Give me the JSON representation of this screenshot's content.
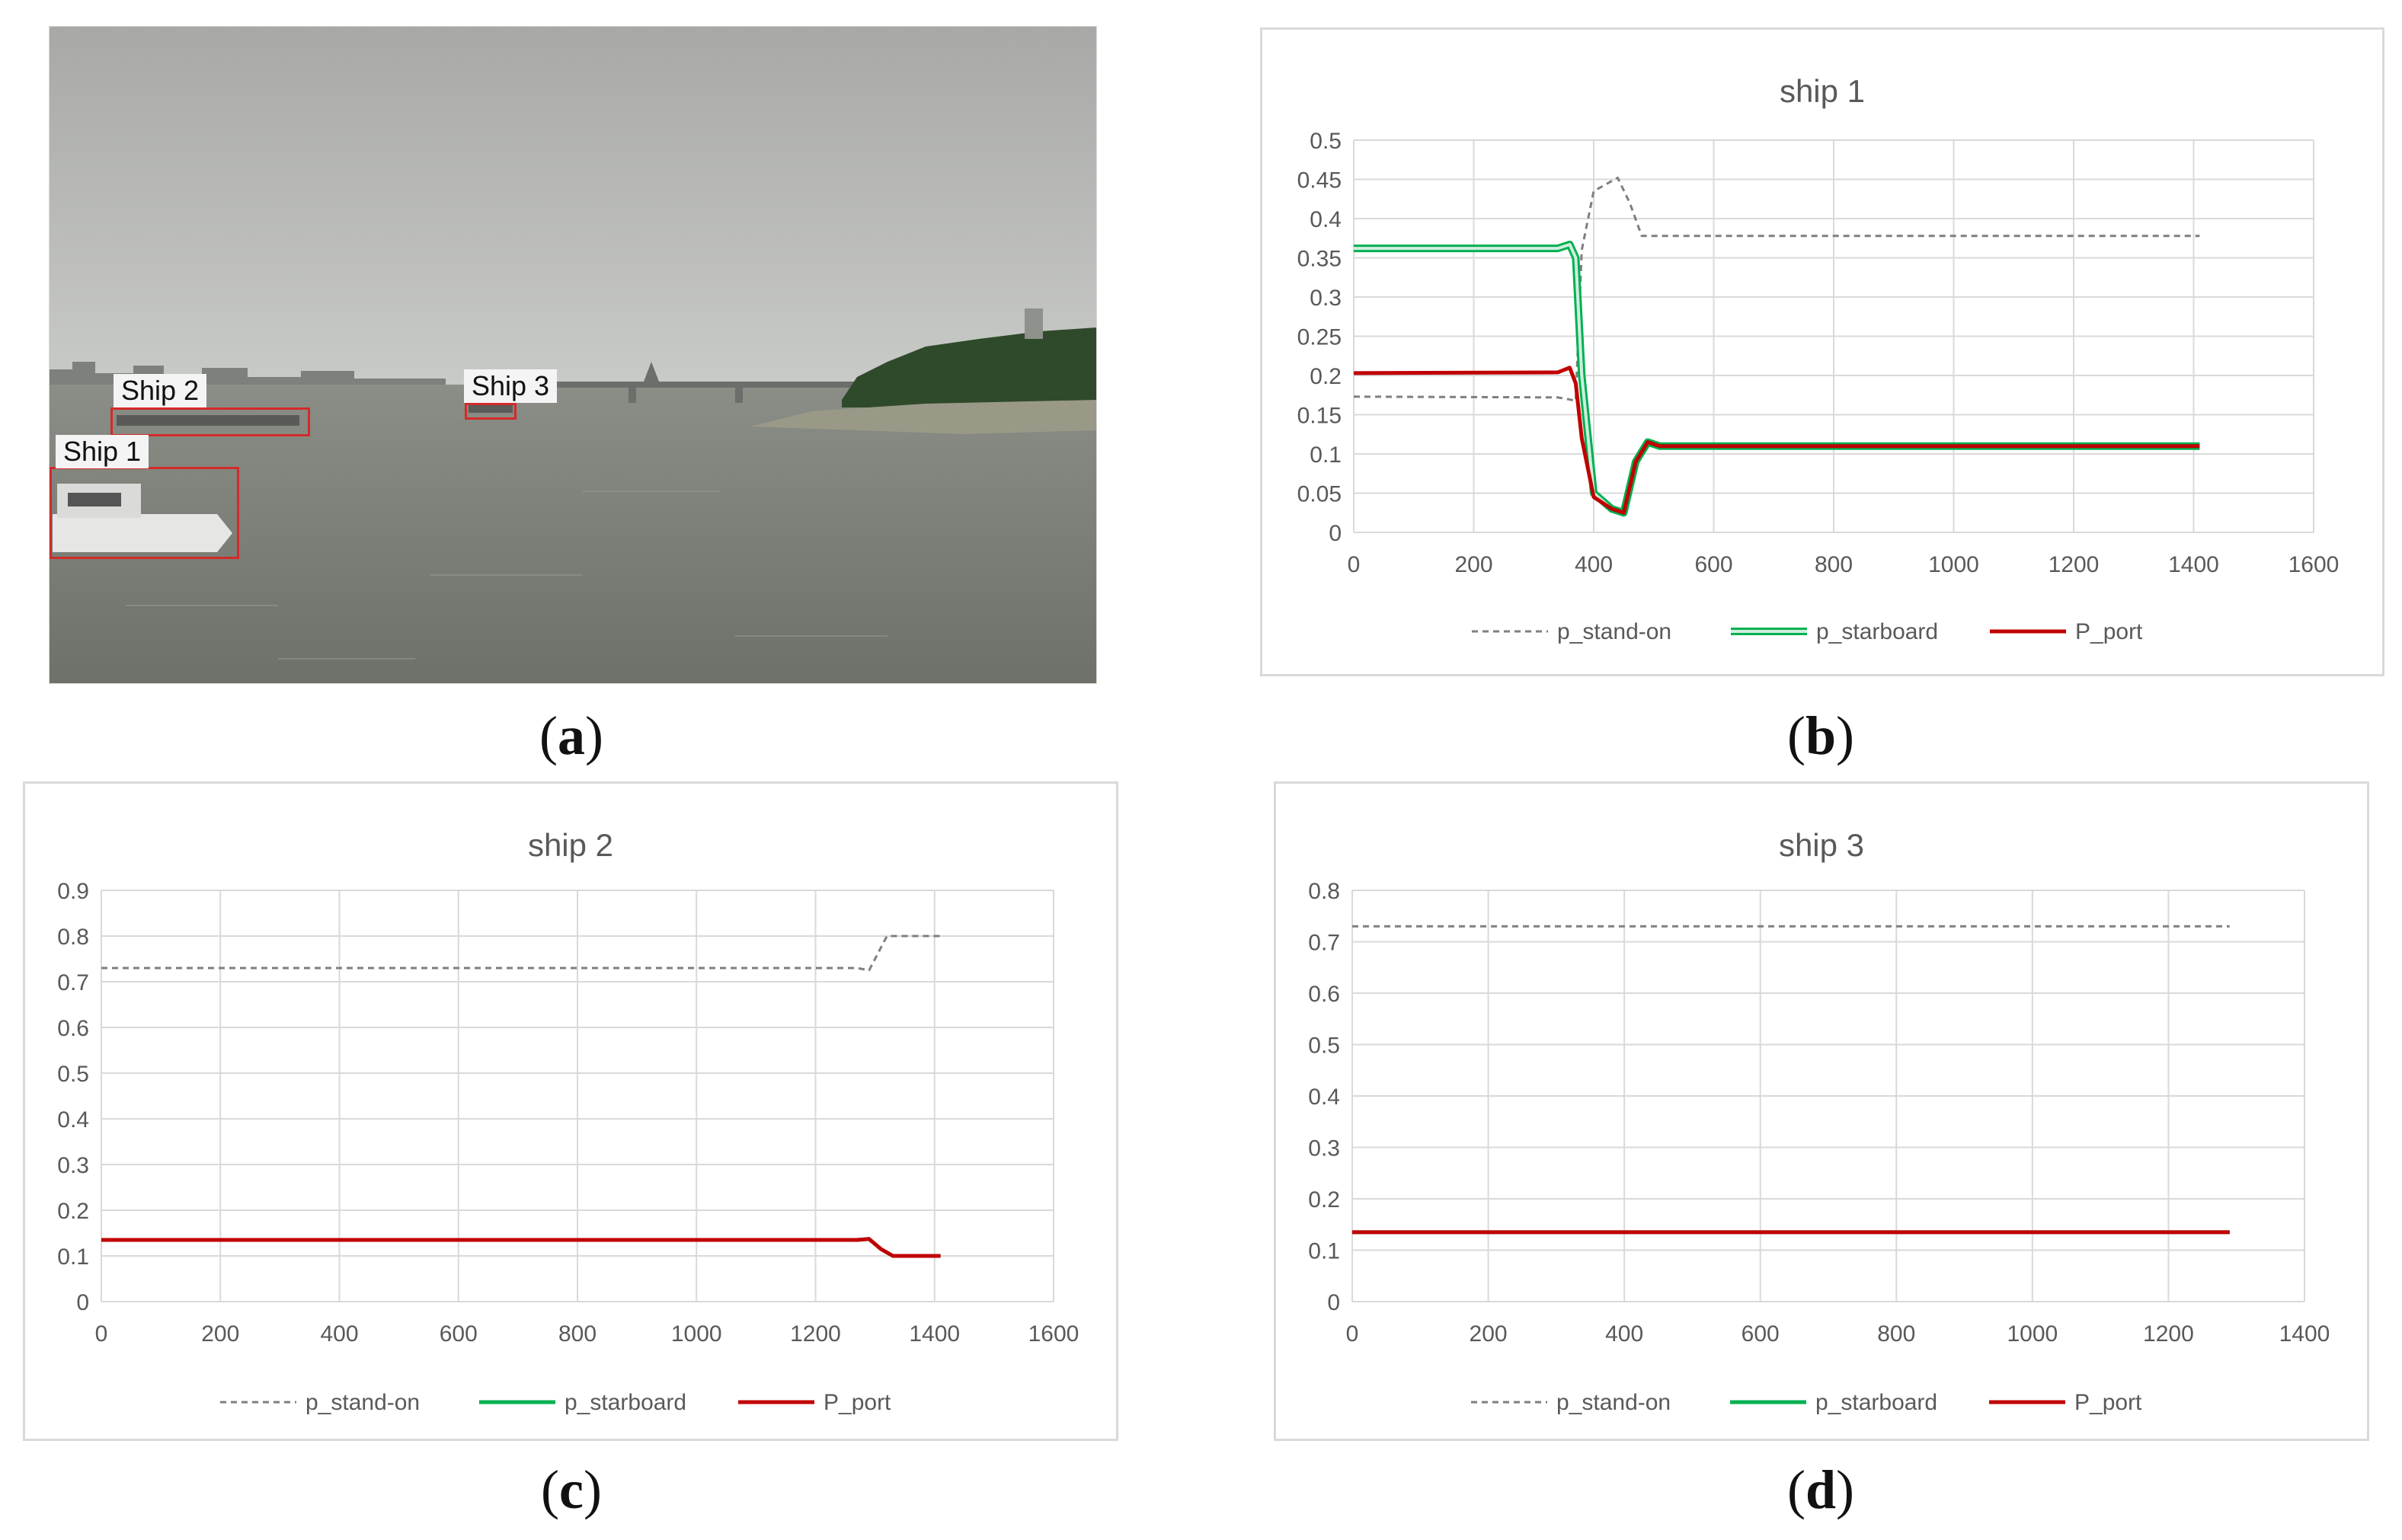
{
  "panels": {
    "a": {
      "caption_letter": "a",
      "labels": [
        "Ship 1",
        "Ship 2",
        "Ship 3"
      ]
    },
    "b": {
      "caption_letter": "b"
    },
    "c": {
      "caption_letter": "c"
    },
    "d": {
      "caption_letter": "d"
    }
  },
  "colors": {
    "stand_on": "#7f7f7f",
    "starboard": "#00b050",
    "port": "#c00000",
    "grid": "#d9d9d9"
  },
  "chart_data": [
    {
      "id": "b",
      "type": "line",
      "title": "ship 1",
      "xlabel": "",
      "ylabel": "",
      "xlim": [
        0,
        1600
      ],
      "ylim": [
        0,
        0.5
      ],
      "xticks": [
        "0",
        "200",
        "400",
        "600",
        "800",
        "1000",
        "1200",
        "1400",
        "1600"
      ],
      "yticks": [
        "0",
        "0.05",
        "0.1",
        "0.15",
        "0.2",
        "0.25",
        "0.3",
        "0.35",
        "0.4",
        "0.45",
        "0.5"
      ],
      "legend_position": "bottom",
      "series": [
        {
          "name": "p_stand-on",
          "style": "dashed",
          "x": [
            0,
            340,
            370,
            380,
            400,
            440,
            460,
            480,
            500,
            1410
          ],
          "y": [
            0.173,
            0.172,
            0.168,
            0.36,
            0.435,
            0.452,
            0.42,
            0.378,
            0.378,
            0.378
          ]
        },
        {
          "name": "p_starboard",
          "style": "double",
          "x": [
            0,
            340,
            360,
            370,
            380,
            400,
            430,
            450,
            470,
            490,
            510,
            1410
          ],
          "y": [
            0.362,
            0.362,
            0.367,
            0.35,
            0.2,
            0.05,
            0.03,
            0.025,
            0.09,
            0.115,
            0.11,
            0.11
          ]
        },
        {
          "name": "P_port",
          "style": "solid",
          "x": [
            0,
            340,
            360,
            370,
            380,
            400,
            430,
            450,
            470,
            490,
            510,
            1410
          ],
          "y": [
            0.203,
            0.204,
            0.21,
            0.19,
            0.12,
            0.045,
            0.03,
            0.025,
            0.09,
            0.115,
            0.11,
            0.11
          ]
        }
      ]
    },
    {
      "id": "c",
      "type": "line",
      "title": "ship 2",
      "xlabel": "",
      "ylabel": "",
      "xlim": [
        0,
        1600
      ],
      "ylim": [
        0,
        0.9
      ],
      "xticks": [
        "0",
        "200",
        "400",
        "600",
        "800",
        "1000",
        "1200",
        "1400",
        "1600"
      ],
      "yticks": [
        "0",
        "0.1",
        "0.2",
        "0.3",
        "0.4",
        "0.5",
        "0.6",
        "0.7",
        "0.8",
        "0.9"
      ],
      "legend_position": "bottom",
      "series": [
        {
          "name": "p_stand-on",
          "style": "dashed",
          "x": [
            0,
            1270,
            1290,
            1320,
            1340,
            1410
          ],
          "y": [
            0.73,
            0.73,
            0.725,
            0.8,
            0.8,
            0.8
          ]
        },
        {
          "name": "p_starboard",
          "style": "solid",
          "x": [
            0,
            1270,
            1290,
            1310,
            1330,
            1410
          ],
          "y": [
            0.135,
            0.135,
            0.137,
            0.115,
            0.1,
            0.1
          ]
        },
        {
          "name": "P_port",
          "style": "solid",
          "x": [
            0,
            1270,
            1290,
            1310,
            1330,
            1410
          ],
          "y": [
            0.135,
            0.135,
            0.137,
            0.115,
            0.1,
            0.1
          ]
        }
      ]
    },
    {
      "id": "d",
      "type": "line",
      "title": "ship 3",
      "xlabel": "",
      "ylabel": "",
      "xlim": [
        0,
        1400
      ],
      "ylim": [
        0,
        0.8
      ],
      "xticks": [
        "0",
        "200",
        "400",
        "600",
        "800",
        "1000",
        "1200",
        "1400"
      ],
      "yticks": [
        "0",
        "0.1",
        "0.2",
        "0.3",
        "0.4",
        "0.5",
        "0.6",
        "0.7",
        "0.8"
      ],
      "legend_position": "bottom",
      "series": [
        {
          "name": "p_stand-on",
          "style": "dashed",
          "x": [
            0,
            1290
          ],
          "y": [
            0.73,
            0.73
          ]
        },
        {
          "name": "p_starboard",
          "style": "solid",
          "x": [
            0,
            1290
          ],
          "y": [
            0.135,
            0.135
          ]
        },
        {
          "name": "P_port",
          "style": "solid",
          "x": [
            0,
            1290
          ],
          "y": [
            0.135,
            0.135
          ]
        }
      ]
    }
  ]
}
